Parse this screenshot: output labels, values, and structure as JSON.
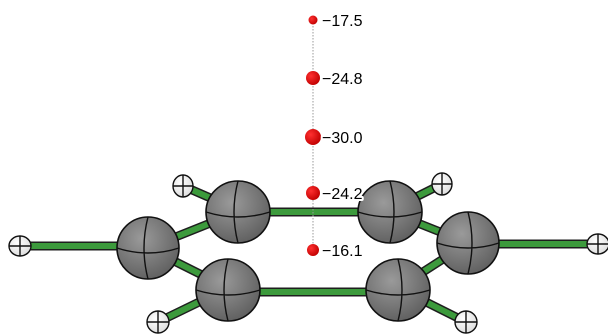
{
  "nics_points": [
    {
      "label": "−17.5"
    },
    {
      "label": "−24.8"
    },
    {
      "label": "−30.0"
    },
    {
      "label": "−24.2"
    },
    {
      "label": "−16.1"
    }
  ]
}
